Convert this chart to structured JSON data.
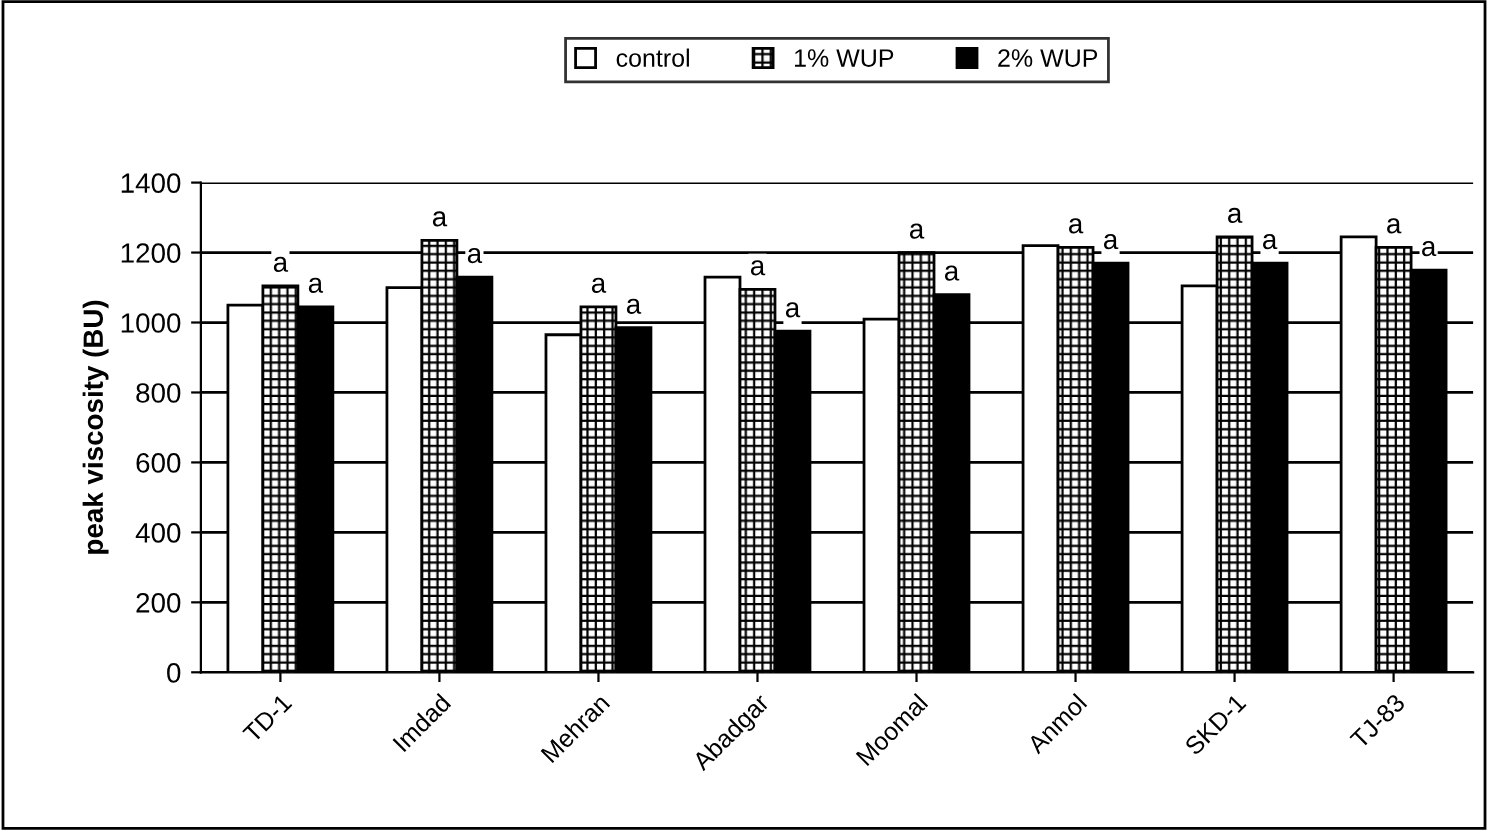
{
  "chart_data": {
    "type": "bar",
    "ylabel": "peak viscosity (BU)",
    "categories": [
      "TD-1",
      "Imdad",
      "Mehran",
      "Abadgar",
      "Moomal",
      "Anmol",
      "SKD-1",
      "TJ-83"
    ],
    "series": [
      {
        "name": "control",
        "color": "#ffffff",
        "values": [
          1050,
          1100,
          965,
          1130,
          1010,
          1220,
          1105,
          1245
        ]
      },
      {
        "name": "1% WUP",
        "color": "#000000",
        "values": [
          1105,
          1235,
          1045,
          1095,
          1200,
          1215,
          1245,
          1215
        ]
      },
      {
        "name": "2% WUP",
        "color": "#000000",
        "values": [
          1045,
          1130,
          985,
          975,
          1080,
          1170,
          1170,
          1150
        ]
      }
    ],
    "ylim": [
      0,
      1400
    ],
    "yticks": [
      0,
      200,
      400,
      600,
      800,
      1000,
      1200,
      1400
    ],
    "grid": "y",
    "legend": "top",
    "annotations": [
      "a",
      "a",
      "a",
      "a",
      "a",
      "a",
      "a",
      "a",
      "a",
      "a",
      "a",
      "a",
      "a",
      "a",
      "a",
      "a"
    ]
  }
}
